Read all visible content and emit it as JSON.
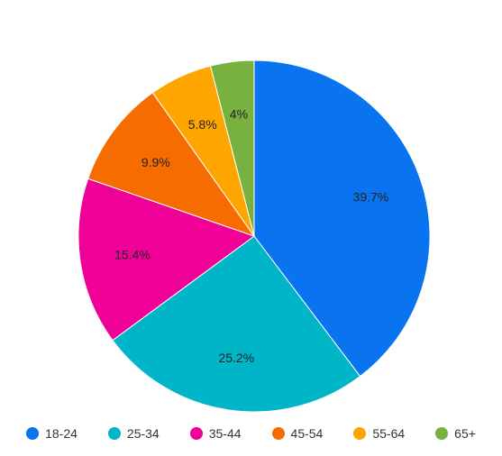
{
  "chart_data": {
    "type": "pie",
    "title": "",
    "legend_position": "bottom",
    "slices": [
      {
        "label": "18-24",
        "value": 39.7,
        "display": "39.7%",
        "color": "#0a74f0"
      },
      {
        "label": "25-34",
        "value": 25.2,
        "display": "25.2%",
        "color": "#00b5c8"
      },
      {
        "label": "35-44",
        "value": 15.4,
        "display": "15.4%",
        "color": "#ef0096"
      },
      {
        "label": "45-54",
        "value": 9.9,
        "display": "9.9%",
        "color": "#f66c00"
      },
      {
        "label": "55-64",
        "value": 5.8,
        "display": "5.8%",
        "color": "#ffa500"
      },
      {
        "label": "65+",
        "value": 4,
        "display": "4%",
        "color": "#79b140"
      }
    ]
  }
}
